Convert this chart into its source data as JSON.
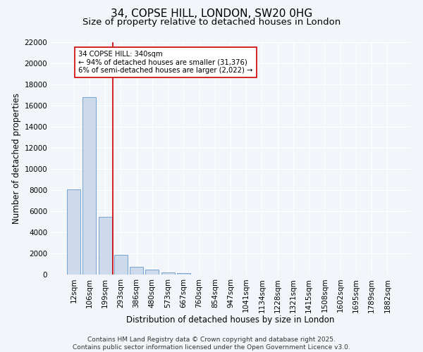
{
  "title_line1": "34, COPSE HILL, LONDON, SW20 0HG",
  "title_line2": "Size of property relative to detached houses in London",
  "xlabel": "Distribution of detached houses by size in London",
  "ylabel": "Number of detached properties",
  "categories": [
    "12sqm",
    "106sqm",
    "199sqm",
    "293sqm",
    "386sqm",
    "480sqm",
    "573sqm",
    "667sqm",
    "760sqm",
    "854sqm",
    "947sqm",
    "1041sqm",
    "1134sqm",
    "1228sqm",
    "1321sqm",
    "1415sqm",
    "1508sqm",
    "1602sqm",
    "1695sqm",
    "1789sqm",
    "1882sqm"
  ],
  "values": [
    8100,
    16800,
    5500,
    1900,
    750,
    450,
    220,
    140,
    0,
    0,
    0,
    0,
    0,
    0,
    0,
    0,
    0,
    0,
    0,
    0,
    0
  ],
  "bar_color": "#ccdaeb",
  "bar_edge_color": "#6699cc",
  "vline_color": "#cc0000",
  "annotation_text_line1": "34 COPSE HILL: 340sqm",
  "annotation_text_line2": "← 94% of detached houses are smaller (31,376)",
  "annotation_text_line3": "6% of semi-detached houses are larger (2,022) →",
  "annotation_box_facecolor": "#ffffff",
  "annotation_box_edgecolor": "#cc0000",
  "ylim": [
    0,
    22000
  ],
  "yticks": [
    0,
    2000,
    4000,
    6000,
    8000,
    10000,
    12000,
    14000,
    16000,
    18000,
    20000,
    22000
  ],
  "background_color": "#f2f5f9",
  "grid_color": "#ffffff",
  "footer_text": "Contains HM Land Registry data © Crown copyright and database right 2025.\nContains public sector information licensed under the Open Government Licence v3.0.",
  "title_fontsize": 11,
  "subtitle_fontsize": 9.5,
  "axis_label_fontsize": 8.5,
  "tick_fontsize": 7.5,
  "footer_fontsize": 6.5
}
